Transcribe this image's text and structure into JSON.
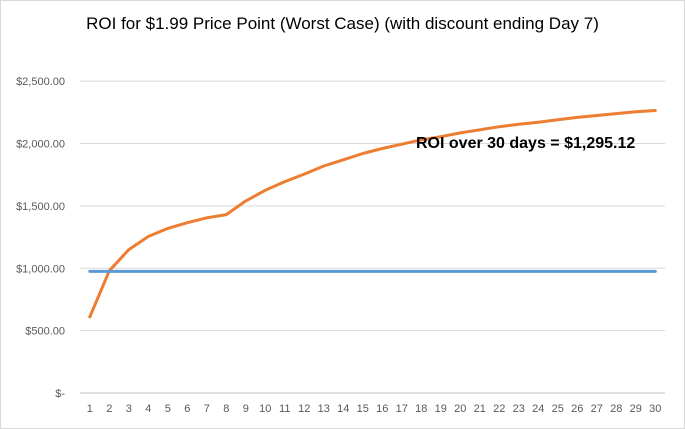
{
  "chart_data": {
    "type": "line",
    "title": "ROI for $1.99 Price Point (Worst Case) (with discount ending Day 7)",
    "annotation": "ROI over 30 days = $1,295.12",
    "xlabel": "",
    "ylabel": "",
    "x": [
      1,
      2,
      3,
      4,
      5,
      6,
      7,
      8,
      9,
      10,
      11,
      12,
      13,
      14,
      15,
      16,
      17,
      18,
      19,
      20,
      21,
      22,
      23,
      24,
      25,
      26,
      27,
      28,
      29,
      30
    ],
    "x_tick_labels": [
      "1",
      "2",
      "3",
      "4",
      "5",
      "6",
      "7",
      "8",
      "9",
      "10",
      "11",
      "12",
      "13",
      "14",
      "15",
      "16",
      "17",
      "18",
      "19",
      "20",
      "21",
      "22",
      "23",
      "24",
      "25",
      "26",
      "27",
      "28",
      "29",
      "30"
    ],
    "y_tick_values": [
      0,
      500,
      1000,
      1500,
      2000,
      2500
    ],
    "y_tick_labels": [
      "$-",
      "$500.00",
      "$1,000.00",
      "$1,500.00",
      "$2,000.00",
      "$2,500.00"
    ],
    "ylim": [
      0,
      2750
    ],
    "grid": true,
    "legend": "none",
    "series": [
      {
        "color": "#ED7D31",
        "values": [
          610,
          980,
          1150,
          1255,
          1320,
          1365,
          1405,
          1430,
          1540,
          1625,
          1695,
          1755,
          1820,
          1870,
          1920,
          1960,
          1995,
          2030,
          2055,
          2085,
          2110,
          2135,
          2155,
          2170,
          2190,
          2210,
          2225,
          2240,
          2255,
          2265
        ]
      },
      {
        "color": "#5B9BD5",
        "values": [
          975,
          975,
          975,
          975,
          975,
          975,
          975,
          975,
          975,
          975,
          975,
          975,
          975,
          975,
          975,
          975,
          975,
          975,
          975,
          975,
          975,
          975,
          975,
          975,
          975,
          975,
          975,
          975,
          975,
          975
        ]
      }
    ],
    "colors": {
      "grid": "#d9d9d9",
      "axis": "#bfbfbf",
      "tick_text": "#595959"
    }
  }
}
